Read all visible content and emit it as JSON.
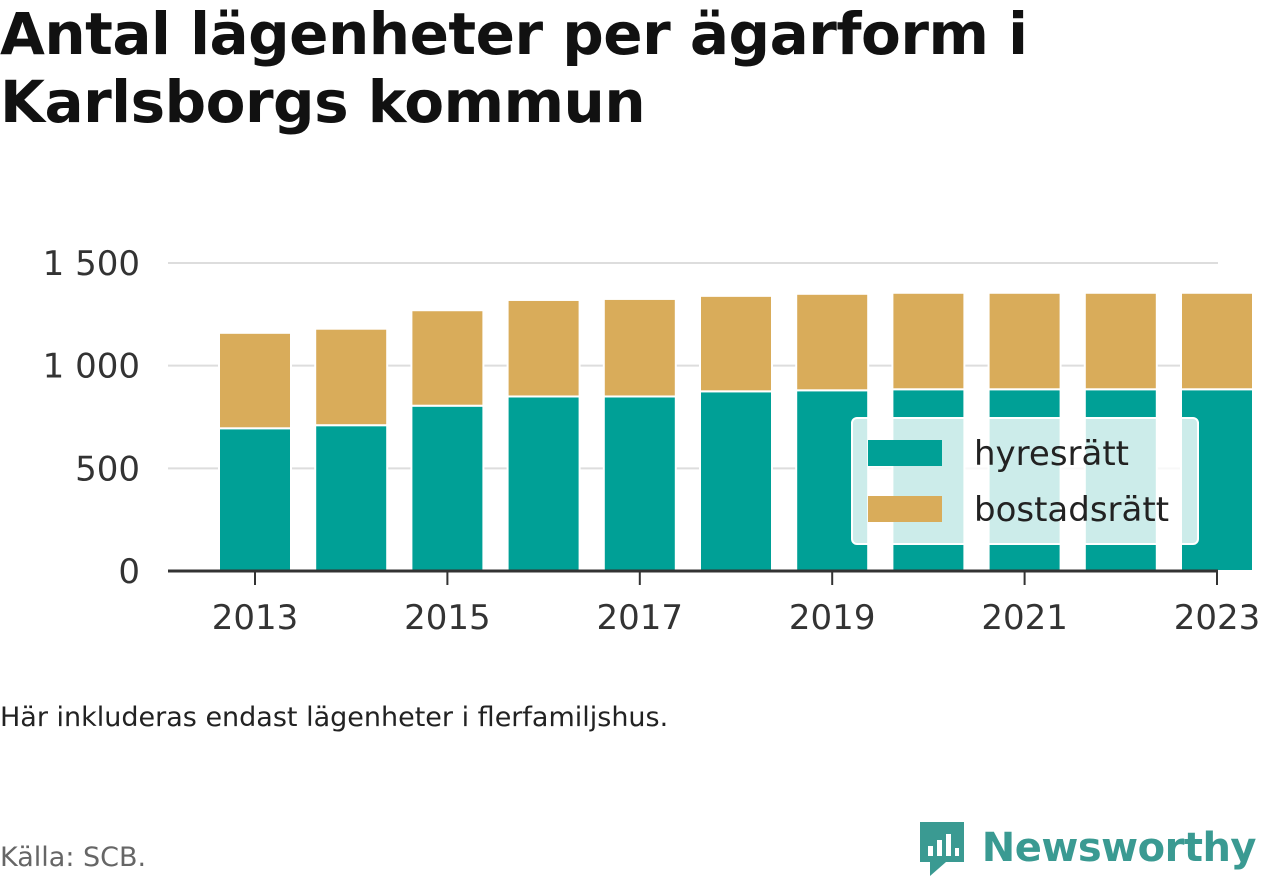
{
  "title": "Antal lägenheter per ägarform i Karlsborgs kommun",
  "note": "Här inkluderas endast lägenheter i flerfamiljshus.",
  "source": "Källa: SCB.",
  "brand": {
    "name": "Newsworthy",
    "icon": "newsworthy-logo-icon"
  },
  "colors": {
    "hyresratt": "#00a096",
    "bostadsratt": "#d9ac5a",
    "brand": "#3a9a92"
  },
  "chart_data": {
    "type": "bar",
    "stacked": true,
    "categories": [
      2013,
      2014,
      2015,
      2016,
      2017,
      2018,
      2019,
      2020,
      2021,
      2022,
      2023
    ],
    "x_tick_labels": [
      "2013",
      "2015",
      "2017",
      "2019",
      "2021",
      "2023"
    ],
    "y_ticks": [
      0,
      500,
      1000,
      1500
    ],
    "y_tick_labels": [
      "0",
      "500",
      "1 000",
      "1 500"
    ],
    "ylim": [
      0,
      1500
    ],
    "grid": true,
    "legend_position": "bottom-right",
    "series": [
      {
        "name": "hyresrätt",
        "color": "#00a096",
        "values": [
          695,
          710,
          805,
          850,
          850,
          875,
          880,
          885,
          885,
          885,
          885
        ]
      },
      {
        "name": "bostadsrätt",
        "color": "#d9ac5a",
        "values": [
          465,
          470,
          465,
          470,
          475,
          465,
          470,
          470,
          470,
          470,
          470
        ]
      }
    ]
  }
}
